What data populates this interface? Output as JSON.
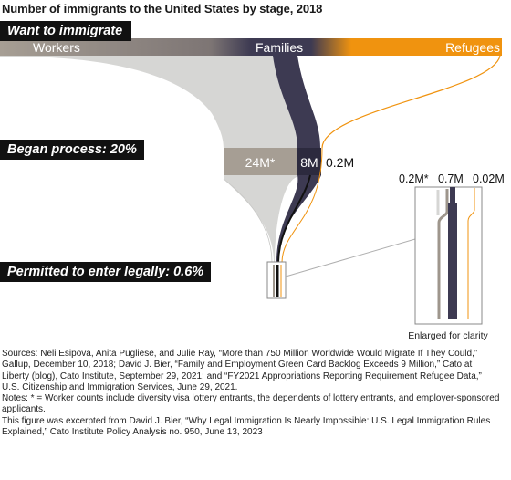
{
  "title": "Number of immigrants to the United States by stage, 2018",
  "stages": {
    "want": "Want to immigrate",
    "began": "Began process: 20%",
    "permitted": "Permitted to enter legally: 0.6%"
  },
  "categories": {
    "workers": "Workers",
    "families": "Families",
    "refugees": "Refugees"
  },
  "values": {
    "workers_began": "24M*",
    "families_began": "8M",
    "refugees_began": "0.2M",
    "workers_permitted": "0.2M*",
    "families_permitted": "0.7M",
    "refugees_permitted": "0.02M"
  },
  "enlarged_caption": "Enlarged for clarity",
  "colors": {
    "workers": "#a69e94",
    "workers_flow": "#d6d6d4",
    "families": "#3d3a52",
    "refugees": "#f0930f"
  },
  "notes": {
    "sources": "Sources: Neli Esipova, Anita Pugliese, and Julie Ray, “More than 750 Million Worldwide Would Migrate If They Could,” Gallup, December 10, 2018; David J. Bier, “Family and Employment Green Card Backlog Exceeds 9 Million,” Cato at Liberty (blog), Cato Institute, September 29, 2021; and “FY2021 Appropriations Reporting Requirement Refugee Data,” U.S. Citizenship and Immigration Services, June 29, 2021.",
    "asterisk": "Notes: * = Worker counts include diversity visa lottery entrants, the dependents of lottery entrants, and employer-sponsored applicants.",
    "excerpt": "This figure was excerpted from David J. Bier, “Why Legal Immigration Is Nearly Impossible: U.S. Legal Immigration Rules Explained,” Cato Institute Policy Analysis no. 950, June 13, 2023"
  }
}
